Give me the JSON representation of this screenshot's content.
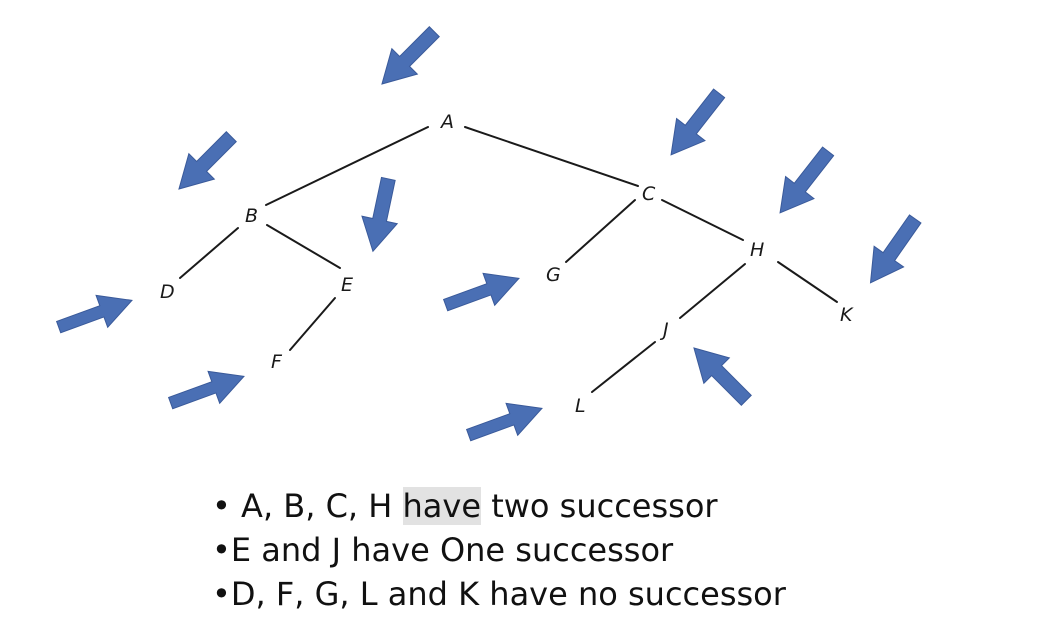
{
  "nodes": [
    "A",
    "B",
    "C",
    "D",
    "E",
    "F",
    "G",
    "H",
    "J",
    "K",
    "L"
  ],
  "edges": [
    [
      "A",
      "B"
    ],
    [
      "A",
      "C"
    ],
    [
      "B",
      "D"
    ],
    [
      "B",
      "E"
    ],
    [
      "E",
      "F"
    ],
    [
      "C",
      "G"
    ],
    [
      "C",
      "H"
    ],
    [
      "H",
      "J"
    ],
    [
      "H",
      "K"
    ],
    [
      "J",
      "L"
    ]
  ],
  "arrow_color": "#4a6fb4",
  "bullets": {
    "line1": {
      "marker": "• ",
      "before": "A, B, C, H ",
      "highlight": "have",
      "after": " two successor"
    },
    "line2": "•E and J have One successor",
    "line3": "•D, F, G, L and K have no successor"
  }
}
